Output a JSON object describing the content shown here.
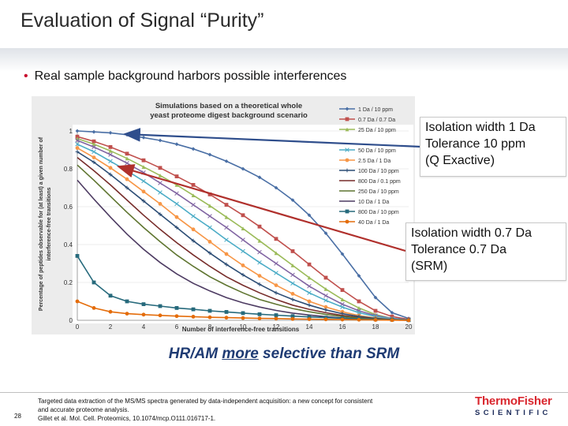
{
  "slide": {
    "title": "Evaluation of Signal “Purity”",
    "bullet": "Real sample background harbors possible interferences",
    "highlight_pre": "HR/AM ",
    "highlight_underlined": "more",
    "highlight_post": " selective than SRM",
    "page_number": "28",
    "reference": [
      "Targeted data extraction of the MS/MS spectra generated by data-independent acquisition: a new concept for consistent",
      "and accurate proteome analysis.",
      "Gillet et al. Mol. Cell. Proteomics, 10.1074/mcp.O111.016717-1."
    ],
    "logo": {
      "part1": "Thermo",
      "part2": "Fisher",
      "part3": "SCIENTIFIC"
    }
  },
  "callouts": [
    {
      "lines": [
        "Isolation width 1 Da",
        "Tolerance 10 ppm",
        "(Q Exactive)"
      ]
    },
    {
      "lines": [
        "Isolation width 0.7 Da",
        "Tolerance 0.7 Da",
        "(SRM)"
      ]
    }
  ],
  "chart_data": {
    "type": "line",
    "title": [
      "Simulations based on a theoretical whole",
      "yeast proteome digest background scenario"
    ],
    "xlabel": "Number of interference-free transitions",
    "ylabel": [
      "Percentage of peptides observable for (at least) a given number of",
      "interference-free transitions"
    ],
    "xlim": [
      0,
      20
    ],
    "ylim": [
      0,
      1
    ],
    "xticks": [
      0,
      2,
      4,
      6,
      8,
      10,
      12,
      14,
      16,
      18,
      20
    ],
    "yticks": [
      0,
      0.2,
      0.4,
      0.6,
      0.8,
      1
    ],
    "ytick_labels": [
      "0",
      "0.2",
      "0.4",
      "0.6",
      "0.8",
      "1"
    ],
    "legend_position": "right",
    "x": [
      0,
      1,
      2,
      3,
      4,
      5,
      6,
      7,
      8,
      9,
      10,
      11,
      12,
      13,
      14,
      15,
      16,
      17,
      18,
      19,
      20
    ],
    "series": [
      {
        "name": "1 Da / 10 ppm",
        "color": "#4a6fa5",
        "marker": "diamond",
        "values": [
          1.0,
          0.995,
          0.99,
          0.98,
          0.965,
          0.95,
          0.93,
          0.905,
          0.875,
          0.84,
          0.8,
          0.755,
          0.7,
          0.635,
          0.555,
          0.46,
          0.35,
          0.235,
          0.12,
          0.04,
          0.01
        ]
      },
      {
        "name": "0.7 Da / 0.7 Da",
        "color": "#c0504d",
        "marker": "square",
        "values": [
          0.97,
          0.945,
          0.915,
          0.88,
          0.845,
          0.805,
          0.76,
          0.715,
          0.665,
          0.61,
          0.555,
          0.495,
          0.43,
          0.365,
          0.295,
          0.225,
          0.16,
          0.1,
          0.05,
          0.02,
          0.005
        ]
      },
      {
        "name": "25 Da / 10 ppm",
        "color": "#9bbb59",
        "marker": "triangle",
        "values": [
          0.96,
          0.93,
          0.895,
          0.855,
          0.81,
          0.765,
          0.715,
          0.66,
          0.605,
          0.545,
          0.485,
          0.42,
          0.355,
          0.29,
          0.225,
          0.165,
          0.11,
          0.065,
          0.03,
          0.01,
          0.003
        ]
      },
      {
        "name": "",
        "color": "#8064a2",
        "marker": "x",
        "values": [
          0.95,
          0.915,
          0.875,
          0.83,
          0.78,
          0.725,
          0.67,
          0.61,
          0.55,
          0.49,
          0.425,
          0.36,
          0.3,
          0.24,
          0.18,
          0.13,
          0.085,
          0.05,
          0.025,
          0.01,
          0.003
        ]
      },
      {
        "name": "50 Da / 10 ppm",
        "color": "#4bacc6",
        "marker": "x",
        "values": [
          0.93,
          0.89,
          0.84,
          0.79,
          0.735,
          0.675,
          0.615,
          0.55,
          0.49,
          0.425,
          0.365,
          0.305,
          0.25,
          0.195,
          0.145,
          0.105,
          0.07,
          0.04,
          0.02,
          0.008,
          0.002
        ]
      },
      {
        "name": "2.5 Da / 1 Da",
        "color": "#f79646",
        "marker": "circle",
        "values": [
          0.91,
          0.86,
          0.805,
          0.745,
          0.68,
          0.615,
          0.545,
          0.48,
          0.415,
          0.35,
          0.29,
          0.235,
          0.185,
          0.14,
          0.1,
          0.07,
          0.045,
          0.025,
          0.012,
          0.005,
          0.001
        ]
      },
      {
        "name": "100 Da / 10 ppm",
        "color": "#2c4d75",
        "marker": "plus",
        "values": [
          0.89,
          0.835,
          0.77,
          0.7,
          0.63,
          0.56,
          0.49,
          0.42,
          0.355,
          0.295,
          0.24,
          0.19,
          0.145,
          0.11,
          0.08,
          0.055,
          0.035,
          0.02,
          0.01,
          0.004,
          0.001
        ]
      },
      {
        "name": "800 Da / 0.1 ppm",
        "color": "#772c2a",
        "marker": "none",
        "values": [
          0.86,
          0.79,
          0.715,
          0.635,
          0.555,
          0.48,
          0.41,
          0.345,
          0.285,
          0.23,
          0.185,
          0.145,
          0.11,
          0.08,
          0.058,
          0.04,
          0.026,
          0.015,
          0.008,
          0.003,
          0.001
        ]
      },
      {
        "name": "250 Da / 10 ppm",
        "color": "#5f7530",
        "marker": "none",
        "values": [
          0.82,
          0.74,
          0.655,
          0.57,
          0.49,
          0.415,
          0.345,
          0.285,
          0.23,
          0.185,
          0.145,
          0.11,
          0.085,
          0.062,
          0.045,
          0.031,
          0.02,
          0.012,
          0.006,
          0.002,
          0.001
        ]
      },
      {
        "name": "10 Da / 1 Da",
        "color": "#4d3b62",
        "marker": "none",
        "values": [
          0.74,
          0.64,
          0.545,
          0.455,
          0.375,
          0.305,
          0.245,
          0.195,
          0.155,
          0.12,
          0.092,
          0.07,
          0.052,
          0.038,
          0.028,
          0.019,
          0.012,
          0.007,
          0.004,
          0.002,
          0.0
        ]
      },
      {
        "name": "800 Da / 10 ppm",
        "color": "#276a7c",
        "marker": "square",
        "values": [
          0.34,
          0.2,
          0.13,
          0.1,
          0.085,
          0.075,
          0.065,
          0.058,
          0.05,
          0.044,
          0.038,
          0.032,
          0.027,
          0.022,
          0.018,
          0.014,
          0.011,
          0.008,
          0.005,
          0.003,
          0.001
        ]
      },
      {
        "name": "40 Da / 1 Da",
        "color": "#e46c0a",
        "marker": "circle",
        "values": [
          0.1,
          0.065,
          0.045,
          0.035,
          0.03,
          0.026,
          0.022,
          0.019,
          0.016,
          0.014,
          0.012,
          0.01,
          0.009,
          0.007,
          0.006,
          0.005,
          0.004,
          0.003,
          0.002,
          0.001,
          0.0
        ]
      }
    ]
  }
}
